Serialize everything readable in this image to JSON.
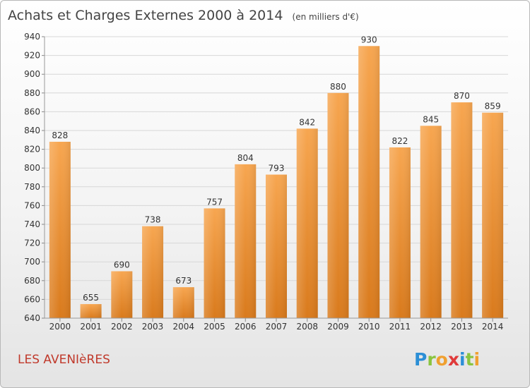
{
  "chart_data": {
    "type": "bar",
    "title": "Achats et Charges Externes 2000 à 2014",
    "subtitle": "(en milliers d'€)",
    "categories": [
      "2000",
      "2001",
      "2002",
      "2003",
      "2004",
      "2005",
      "2006",
      "2007",
      "2008",
      "2009",
      "2010",
      "2011",
      "2012",
      "2013",
      "2014"
    ],
    "values": [
      828,
      655,
      690,
      738,
      673,
      757,
      804,
      793,
      842,
      880,
      930,
      822,
      845,
      870,
      859
    ],
    "ylim": [
      640,
      940
    ],
    "yticks": [
      640,
      660,
      680,
      700,
      720,
      740,
      760,
      780,
      800,
      820,
      840,
      860,
      880,
      900,
      920,
      940
    ],
    "xlabel": "",
    "ylabel": "",
    "grid": true,
    "data_labels": true,
    "bar_color_top": "#f7a650",
    "bar_color_bottom": "#d97a1c"
  },
  "footer": {
    "place": "LES AVENIèRES",
    "brand": {
      "letters": [
        "P",
        "r",
        "o",
        "x",
        "i",
        "t",
        "i"
      ],
      "colors": [
        "#2c8fd6",
        "#8ac43f",
        "#f0a030",
        "#e03a3a",
        "#2c8fd6",
        "#8ac43f",
        "#f0a030"
      ]
    }
  }
}
